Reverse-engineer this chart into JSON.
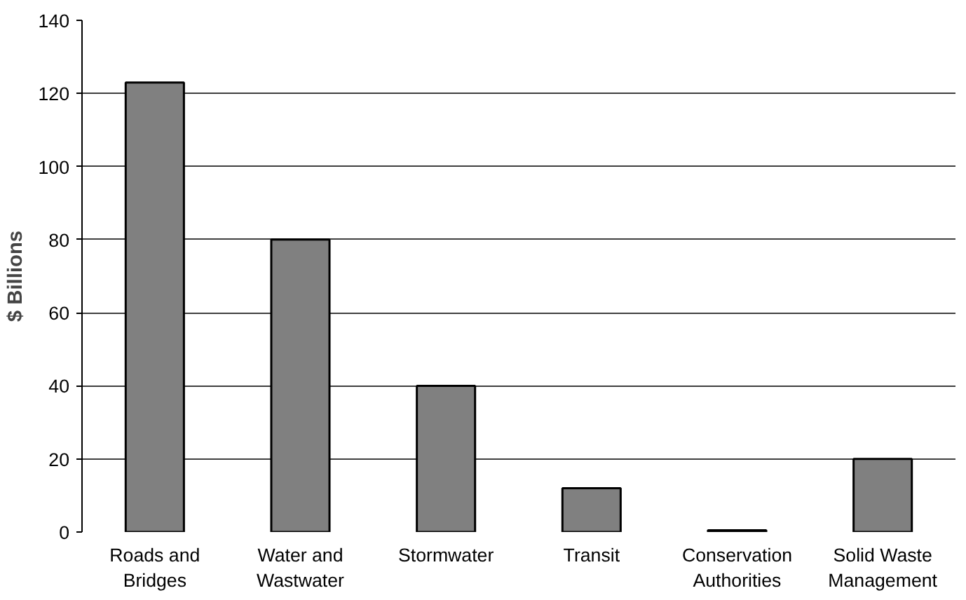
{
  "chart_data": {
    "type": "bar",
    "ylabel": "$ Billions",
    "categories": [
      "Roads and Bridges",
      "Water and Wastwater",
      "Stormwater",
      "Transit",
      "Conservation Authorities",
      "Solid Waste Management"
    ],
    "values": [
      123,
      80,
      40,
      12,
      0.5,
      20
    ],
    "color": "#808080",
    "ylim": [
      0,
      140
    ],
    "yticks": [
      0,
      20,
      40,
      60,
      80,
      100,
      120,
      140
    ],
    "grid": "y"
  }
}
